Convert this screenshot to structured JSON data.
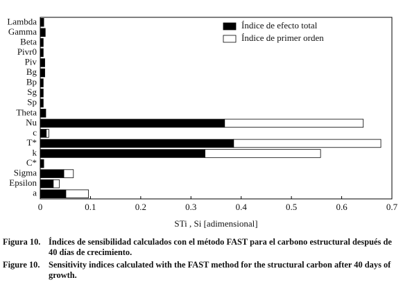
{
  "chart_data": {
    "type": "stacked_barh",
    "categories": [
      "Lambda",
      "Gamma",
      "Beta",
      "Pivr0",
      "Piv",
      "Bg",
      "Bp",
      "Sg",
      "Sp",
      "Theta",
      "Nu",
      "c",
      "T*",
      "k",
      "C*",
      "Sigma",
      "Epsilon",
      "a"
    ],
    "series": [
      {
        "name": "Índice de efecto total",
        "color": "#000000",
        "values": [
          0.007,
          0.01,
          0.006,
          0.006,
          0.009,
          0.009,
          0.006,
          0.006,
          0.006,
          0.011,
          0.367,
          0.012,
          0.385,
          0.328,
          0.007,
          0.047,
          0.026,
          0.051
        ]
      },
      {
        "name": "Índice de primer orden",
        "color": "#ffffff",
        "values": [
          0,
          0,
          0,
          0,
          0,
          0,
          0,
          0,
          0,
          0,
          0.276,
          0.005,
          0.293,
          0.23,
          0,
          0.019,
          0.012,
          0.045
        ]
      }
    ],
    "x_label": "STi , Si [adimensional]",
    "xlim": [
      0,
      0.7
    ],
    "xticks": [
      0,
      0.1,
      0.2,
      0.3,
      0.4,
      0.5,
      0.6,
      0.7
    ],
    "legend": "upper right"
  },
  "captions": [
    {
      "label": "Figura 10.",
      "text": "Índices de sensibilidad calculados con el método FAST para el carbono estructural después de 40 días de crecimiento."
    },
    {
      "label": "Figure 10.",
      "text": "Sensitivity indices calculated with the FAST method for the structural carbon after 40 days of growth."
    }
  ]
}
